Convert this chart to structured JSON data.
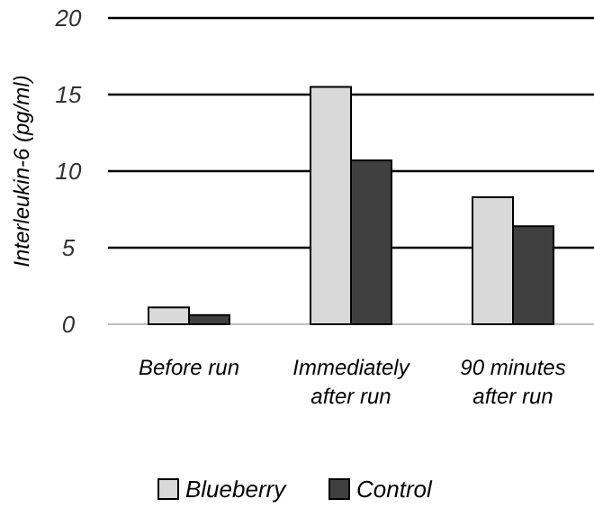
{
  "chart_data": {
    "type": "bar",
    "ylabel": "Interleukin-6 (pg/ml)",
    "categories": [
      "Before run",
      "Immediately after run",
      "90 minutes after run"
    ],
    "series": [
      {
        "name": "Blueberry",
        "color": "#d9d9d9",
        "values": [
          1.1,
          15.5,
          8.3
        ]
      },
      {
        "name": "Control",
        "color": "#404040",
        "values": [
          0.6,
          10.7,
          6.4
        ]
      }
    ],
    "ylim": [
      0,
      20
    ],
    "yticks": [
      0,
      5,
      10,
      15,
      20
    ],
    "grid": "y",
    "legend": "bottom"
  }
}
